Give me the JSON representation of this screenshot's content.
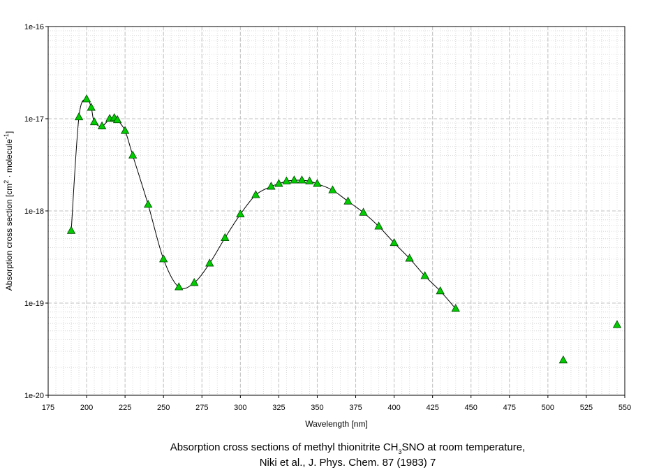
{
  "chart_data": {
    "type": "scatter",
    "ylabel": [
      "Absorption cross section [cm",
      "2",
      " · molecule",
      "-1",
      "]"
    ],
    "xlabel": "Wavelength [nm]",
    "caption": [
      [
        "Absorption cross sections of methyl thionitrite CH",
        "3",
        "SNO at room temperature,"
      ],
      [
        "Niki et al., J. Phys. Chem. 87 (1983) 7"
      ]
    ],
    "log_y": true,
    "grid": true,
    "xlim": [
      175,
      550
    ],
    "xticks": [
      175,
      200,
      225,
      250,
      275,
      300,
      325,
      350,
      375,
      400,
      425,
      450,
      475,
      500,
      525,
      550
    ],
    "ylim": [
      1e-20,
      1e-16
    ],
    "yticks": [
      {
        "value": 1e-20,
        "label": "1e-20"
      },
      {
        "value": 1e-19,
        "label": "1e-19"
      },
      {
        "value": 1e-18,
        "label": "1e-18"
      },
      {
        "value": 1e-17,
        "label": "1e-17"
      },
      {
        "value": 1e-16,
        "label": "1e-16"
      }
    ],
    "series": [
      {
        "color": "#00cc00",
        "line": true,
        "x": [
          190,
          195,
          200,
          203,
          205,
          210,
          215,
          218,
          220,
          225,
          230,
          240,
          250,
          260,
          270,
          280,
          290,
          300,
          310,
          320,
          325,
          330,
          335,
          340,
          345,
          350,
          360,
          370,
          380,
          390,
          400,
          410,
          420,
          430,
          440
        ],
        "values": [
          6.1e-19,
          1.04e-17,
          1.63e-17,
          1.32e-17,
          9.2e-18,
          8.3e-18,
          1e-17,
          1.02e-17,
          9.7e-18,
          7.4e-18,
          4e-18,
          1.17e-18,
          3e-19,
          1.49e-19,
          1.66e-19,
          2.7e-19,
          5.1e-19,
          9.2e-19,
          1.49e-18,
          1.84e-18,
          1.97e-18,
          2.1e-18,
          2.15e-18,
          2.15e-18,
          2.1e-18,
          1.97e-18,
          1.68e-18,
          1.27e-18,
          9.6e-19,
          6.8e-19,
          4.5e-19,
          3.05e-19,
          1.97e-19,
          1.35e-19,
          8.7e-20
        ]
      },
      {
        "color": "#00cc00",
        "line": false,
        "x": [
          510,
          545
        ],
        "values": [
          2.4e-20,
          5.8e-20
        ]
      }
    ]
  }
}
